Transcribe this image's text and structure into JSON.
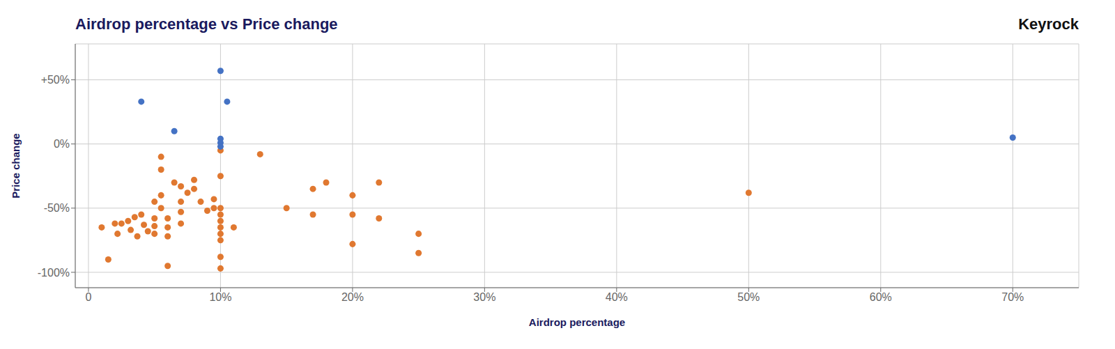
{
  "chart_data": {
    "type": "scatter",
    "title": "Airdrop percentage vs Price change",
    "xlabel": "Airdrop percentage",
    "ylabel": "Price change",
    "annotations": [
      "Keyrock"
    ],
    "series": [
      {
        "color": "#e07830",
        "x": [
          1.0,
          1.5,
          2.0,
          2.2,
          2.5,
          3.0,
          3.2,
          3.5,
          3.7,
          4.0,
          4.2,
          4.5,
          5.0,
          5.0,
          5.0,
          5.0,
          5.5,
          5.5,
          5.5,
          5.5,
          6.0,
          6.0,
          6.0,
          6.0,
          6.5,
          7.0,
          7.0,
          7.0,
          7.0,
          7.5,
          8.0,
          8.0,
          8.5,
          9.0,
          9.5,
          9.5,
          10.0,
          10.0,
          10.0,
          10.0,
          10.0,
          10.0,
          10.0,
          10.0,
          10.0,
          10.0,
          11.0,
          13.0,
          15.0,
          17.0,
          17.0,
          18.0,
          20.0,
          20.0,
          22.0,
          25.0,
          25.0,
          50.0,
          20.0,
          22.0
        ],
        "values": [
          -65,
          -90,
          -62,
          -70,
          -62,
          -60,
          -67,
          -57,
          -72,
          -55,
          -63,
          -68,
          -45,
          -58,
          -64,
          -70,
          -10,
          -20,
          -40,
          -50,
          -58,
          -65,
          -72,
          -95,
          -30,
          -33,
          -45,
          -53,
          -62,
          -38,
          -28,
          -35,
          -45,
          -52,
          -50,
          -43,
          -5,
          -25,
          -50,
          -55,
          -60,
          -65,
          -70,
          -75,
          -88,
          -97,
          -65,
          -8,
          -50,
          -55,
          -35,
          -30,
          -40,
          -55,
          -30,
          -70,
          -85,
          -38,
          -78,
          -58
        ]
      },
      {
        "color": "#4472c4",
        "x": [
          4.0,
          6.5,
          10.0,
          10.5,
          10.0,
          10.0,
          10.0,
          70.0
        ],
        "values": [
          33,
          10,
          57,
          33,
          4,
          1,
          -2,
          5
        ]
      }
    ],
    "xlim": [
      -1.0,
      75
    ],
    "ylim": [
      -112,
      78
    ],
    "xticks": [
      0,
      {
        "value": 10,
        "label": "10%"
      },
      {
        "value": 20,
        "label": "20%"
      },
      {
        "value": 30,
        "label": "30%"
      },
      {
        "value": 40,
        "label": "40%"
      },
      {
        "value": 50,
        "label": "50%"
      },
      {
        "value": 60,
        "label": "60%"
      },
      {
        "value": 70,
        "label": "70%"
      }
    ],
    "yticks": [
      {
        "value": -100,
        "label": "-100%"
      },
      {
        "value": -50,
        "label": "-50%"
      },
      {
        "value": 0,
        "label": "0%"
      },
      {
        "value": 50,
        "label": "+50%"
      }
    ],
    "grid": true
  }
}
